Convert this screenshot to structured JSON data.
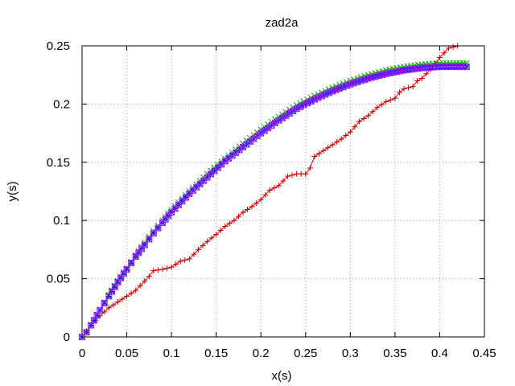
{
  "chart_data": {
    "type": "line",
    "title": "zad2a",
    "xlabel": "x(s)",
    "ylabel": "y(s)",
    "xlim": [
      0,
      0.45
    ],
    "ylim": [
      0,
      0.25
    ],
    "xticks": [
      "0",
      "0.05",
      "0.1",
      "0.15",
      "0.2",
      "0.25",
      "0.3",
      "0.35",
      "0.4",
      "0.45"
    ],
    "yticks": [
      "0",
      "0.05",
      "0.1",
      "0.15",
      "0.2",
      "0.25"
    ],
    "grid": true,
    "legend": "none",
    "series": [
      {
        "color": "#cc0000",
        "marker": "plus",
        "x": [
          0,
          0.01,
          0.02,
          0.03,
          0.04,
          0.05,
          0.06,
          0.07,
          0.075,
          0.08,
          0.09,
          0.1,
          0.11,
          0.115,
          0.12,
          0.13,
          0.14,
          0.15,
          0.16,
          0.17,
          0.18,
          0.19,
          0.2,
          0.21,
          0.215,
          0.22,
          0.23,
          0.24,
          0.25,
          0.255,
          0.26,
          0.27,
          0.28,
          0.29,
          0.3,
          0.31,
          0.32,
          0.33,
          0.34,
          0.35,
          0.355,
          0.36,
          0.37,
          0.375,
          0.38,
          0.39,
          0.4,
          0.41,
          0.42
        ],
        "y": [
          0,
          0.01,
          0.018,
          0.025,
          0.03,
          0.035,
          0.04,
          0.048,
          0.052,
          0.057,
          0.058,
          0.06,
          0.065,
          0.066,
          0.067,
          0.075,
          0.082,
          0.088,
          0.095,
          0.1,
          0.107,
          0.112,
          0.118,
          0.126,
          0.128,
          0.13,
          0.138,
          0.14,
          0.14,
          0.145,
          0.155,
          0.16,
          0.165,
          0.17,
          0.176,
          0.185,
          0.19,
          0.197,
          0.202,
          0.205,
          0.21,
          0.213,
          0.215,
          0.22,
          0.222,
          0.23,
          0.24,
          0.248,
          0.25
        ]
      },
      {
        "color": "#00a000",
        "marker": "x",
        "x": [
          0,
          0.005,
          0.01,
          0.02,
          0.03,
          0.04,
          0.05,
          0.06,
          0.07,
          0.08,
          0.09,
          0.1,
          0.12,
          0.14,
          0.16,
          0.18,
          0.2,
          0.22,
          0.24,
          0.26,
          0.28,
          0.3,
          0.32,
          0.34,
          0.36,
          0.38,
          0.4,
          0.415,
          0.43
        ],
        "y": [
          0,
          0.004,
          0.01,
          0.023,
          0.036,
          0.048,
          0.059,
          0.07,
          0.081,
          0.091,
          0.1,
          0.109,
          0.125,
          0.14,
          0.153,
          0.166,
          0.178,
          0.189,
          0.199,
          0.207,
          0.214,
          0.22,
          0.225,
          0.229,
          0.232,
          0.234,
          0.235,
          0.235,
          0.235
        ]
      },
      {
        "color": "#0000ff",
        "marker": "star",
        "x": [
          0,
          0.005,
          0.01,
          0.02,
          0.03,
          0.04,
          0.05,
          0.06,
          0.07,
          0.08,
          0.09,
          0.1,
          0.12,
          0.14,
          0.16,
          0.18,
          0.2,
          0.22,
          0.24,
          0.26,
          0.28,
          0.3,
          0.32,
          0.34,
          0.36,
          0.38,
          0.4,
          0.415,
          0.43
        ],
        "y": [
          0,
          0.004,
          0.01,
          0.023,
          0.035,
          0.047,
          0.058,
          0.069,
          0.079,
          0.089,
          0.098,
          0.107,
          0.123,
          0.137,
          0.151,
          0.163,
          0.175,
          0.186,
          0.196,
          0.204,
          0.211,
          0.217,
          0.222,
          0.226,
          0.229,
          0.231,
          0.232,
          0.232,
          0.232
        ]
      },
      {
        "color": "#a020f0",
        "marker": "square",
        "x": [
          0,
          0.005,
          0.01,
          0.02,
          0.03,
          0.04,
          0.05,
          0.06,
          0.07,
          0.08,
          0.09,
          0.1,
          0.12,
          0.14,
          0.16,
          0.18,
          0.2,
          0.22,
          0.24,
          0.26,
          0.28,
          0.3,
          0.32,
          0.34,
          0.36,
          0.38,
          0.4,
          0.415,
          0.43
        ],
        "y": [
          0,
          0.004,
          0.01,
          0.023,
          0.035,
          0.047,
          0.058,
          0.069,
          0.079,
          0.089,
          0.098,
          0.107,
          0.123,
          0.137,
          0.151,
          0.163,
          0.175,
          0.186,
          0.196,
          0.204,
          0.211,
          0.217,
          0.222,
          0.226,
          0.229,
          0.231,
          0.232,
          0.232,
          0.232
        ]
      }
    ]
  }
}
